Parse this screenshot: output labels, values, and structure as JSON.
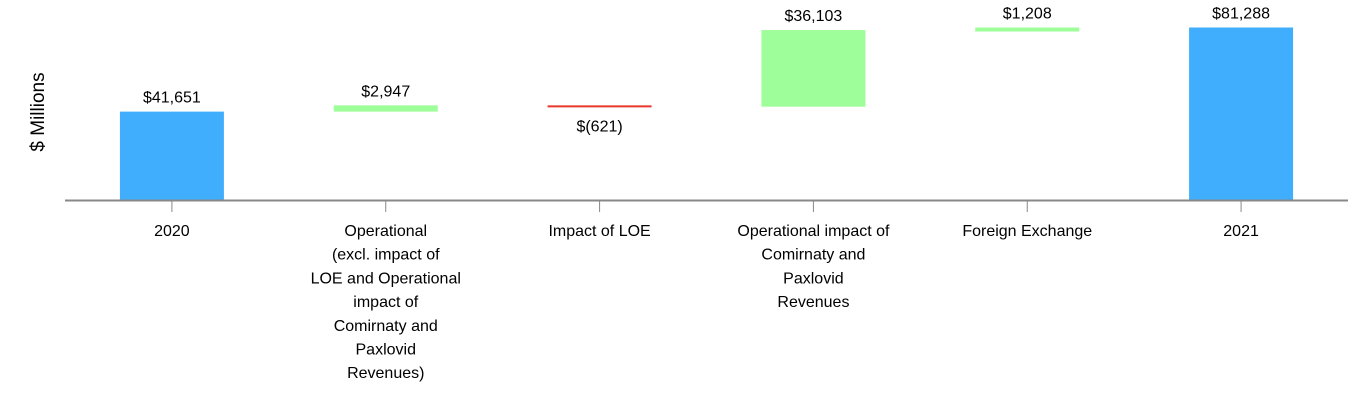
{
  "chart_data": {
    "type": "bar",
    "subtype": "waterfall",
    "ylabel": "$ Millions",
    "categories": [
      "2020",
      "Operational (excl. impact of LOE and Operational impact of Comirnaty and Paxlovid Revenues)",
      "Impact of LOE",
      "Operational impact of Comirnaty and Paxlovid Revenues",
      "Foreign Exchange",
      "2021"
    ],
    "category_lines": [
      [
        "2020"
      ],
      [
        "Operational",
        "(excl. impact of",
        "LOE and Operational",
        "impact of",
        "Comirnaty and",
        "Paxlovid",
        "Revenues)"
      ],
      [
        "Impact of LOE"
      ],
      [
        "Operational impact of",
        "Comirnaty and",
        "Paxlovid",
        "Revenues"
      ],
      [
        "Foreign Exchange"
      ],
      [
        "2021"
      ]
    ],
    "values": [
      41651,
      2947,
      -621,
      36103,
      1208,
      81288
    ],
    "kinds": [
      "total",
      "increase",
      "decrease",
      "increase",
      "increase",
      "total"
    ],
    "data_labels": [
      "$41,651",
      "$2,947",
      "$(621)",
      "$36,103",
      "$1,208",
      "$81,288"
    ],
    "colors": {
      "total": "#41aefd",
      "increase": "#9efe9a",
      "decrease": "#e8382c",
      "axis": "#888888"
    },
    "ylim": [
      0,
      82000
    ],
    "grid": false,
    "legend": "none"
  }
}
